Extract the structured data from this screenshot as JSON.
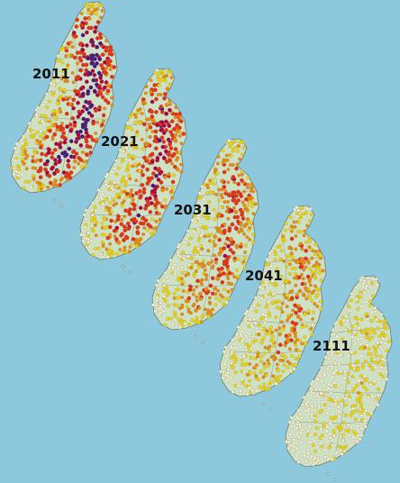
{
  "colors": {
    "sea": "#8dc8dc",
    "land": "#cfe1c4",
    "border": "#6e7a6e",
    "dot_low": "#f4f0c8",
    "dot_mid": "#f2d800",
    "dot_high": "#f08a00",
    "dot_higher": "#e8300c",
    "dot_highest": "#b0003a",
    "dot_extreme": "#4a147a"
  },
  "maps": [
    {
      "year": "2011"
    },
    {
      "year": "2021"
    },
    {
      "year": "2031"
    },
    {
      "year": "2041"
    },
    {
      "year": "2111"
    }
  ]
}
